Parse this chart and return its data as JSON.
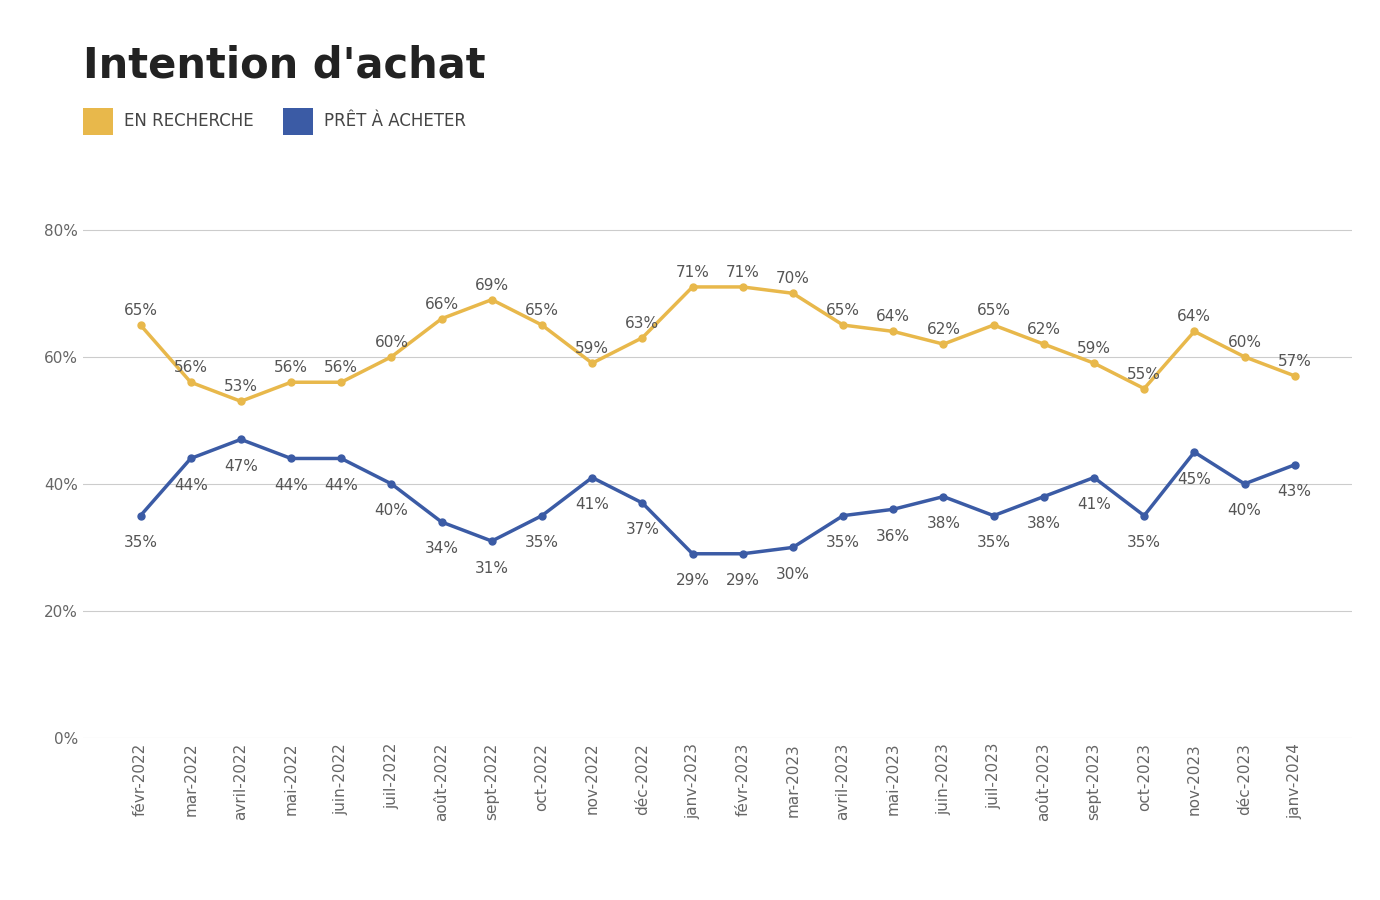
{
  "title": "Intention d'achat",
  "legend": [
    "EN RECHERCHE",
    "PRÊT À ACHETER"
  ],
  "colors": [
    "#E8B84B",
    "#3B5BA5"
  ],
  "categories": [
    "févr-2022",
    "mar-2022",
    "avril-2022",
    "mai-2022",
    "juin-2022",
    "juil-2022",
    "août-2022",
    "sept-2022",
    "oct-2022",
    "nov-2022",
    "déc-2022",
    "janv-2023",
    "févr-2023",
    "mar-2023",
    "avril-2023",
    "mai-2023",
    "juin-2023",
    "juil-2023",
    "août-2023",
    "sept-2023",
    "oct-2023",
    "nov-2023",
    "déc-2023",
    "janv-2024"
  ],
  "en_recherche": [
    65,
    56,
    53,
    56,
    56,
    60,
    66,
    69,
    65,
    59,
    63,
    71,
    71,
    70,
    65,
    64,
    62,
    65,
    62,
    59,
    55,
    64,
    60,
    57
  ],
  "pret_acheter": [
    35,
    44,
    47,
    44,
    44,
    40,
    34,
    31,
    35,
    41,
    37,
    29,
    29,
    30,
    35,
    36,
    38,
    35,
    38,
    41,
    35,
    45,
    40,
    43
  ],
  "yticks": [
    0,
    20,
    40,
    60,
    80
  ],
  "ylim": [
    0,
    85
  ],
  "background_color": "#FFFFFF",
  "grid_color": "#CCCCCC",
  "title_fontsize": 30,
  "label_fontsize": 11,
  "legend_fontsize": 12,
  "annotation_fontsize": 11
}
